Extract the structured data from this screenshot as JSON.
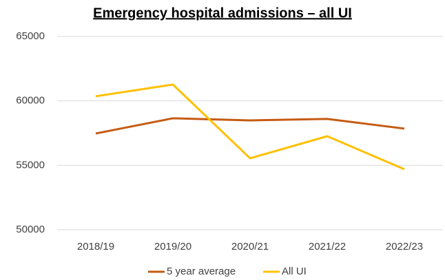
{
  "chart_data": {
    "type": "line",
    "title": "Emergency hospital admissions – all UI",
    "categories": [
      "2018/19",
      "2019/20",
      "2020/21",
      "2021/22",
      "2022/23"
    ],
    "series": [
      {
        "name": "5 year average",
        "color": "#c55a11",
        "values": [
          57470,
          58650,
          58490,
          58600,
          57850
        ]
      },
      {
        "name": "All UI",
        "color": "#ffc000",
        "values": [
          60360,
          61270,
          55550,
          57260,
          54700
        ]
      }
    ],
    "ylim": [
      50000,
      65000
    ],
    "yticks": [
      50000,
      55000,
      60000,
      65000
    ],
    "grid": true,
    "legend": "bottom"
  }
}
